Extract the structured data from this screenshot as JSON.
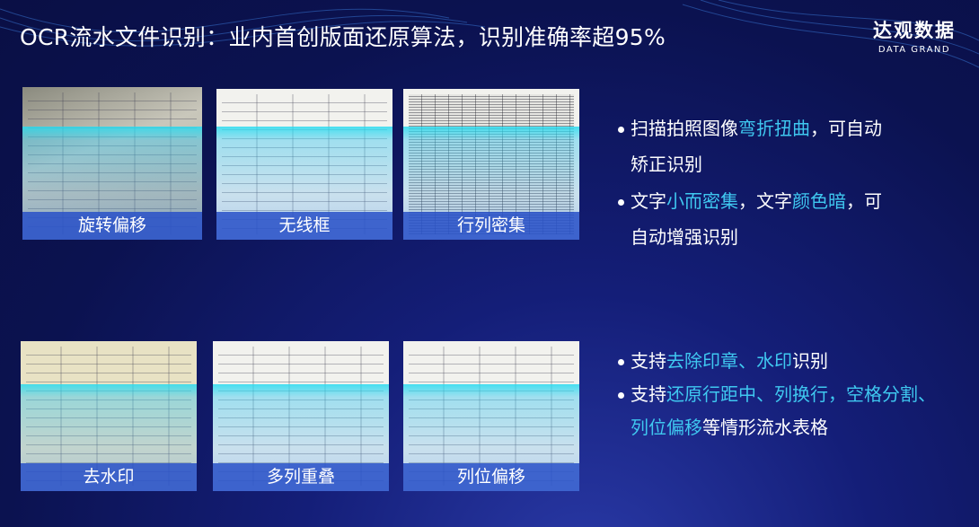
{
  "title": "OCR流水文件识别：业内首创版面还原算法，识别准确率超95%",
  "logo": {
    "cn": "达观数据",
    "en": "DATA GRAND"
  },
  "colors": {
    "background": "#0b1250",
    "highlight": "#3fc8f0",
    "label_bar": "#2850c8",
    "scan_overlay": "#28dcf0"
  },
  "cards": [
    {
      "label": "旋转偏移"
    },
    {
      "label": "无线框"
    },
    {
      "label": "行列密集"
    },
    {
      "label": "去水印"
    },
    {
      "label": "多列重叠"
    },
    {
      "label": "列位偏移"
    }
  ],
  "bullets_top": [
    {
      "lines": [
        [
          {
            "t": "扫描拍照图像",
            "h": false
          },
          {
            "t": "弯折扭曲",
            "h": true
          },
          {
            "t": "，可自动",
            "h": false
          }
        ],
        [
          {
            "t": "矫正识别",
            "h": false
          }
        ]
      ]
    },
    {
      "lines": [
        [
          {
            "t": "文字",
            "h": false
          },
          {
            "t": "小而密集",
            "h": true
          },
          {
            "t": "，文字",
            "h": false
          },
          {
            "t": "颜色暗",
            "h": true
          },
          {
            "t": "，可",
            "h": false
          }
        ],
        [
          {
            "t": "自动增强识别",
            "h": false
          }
        ]
      ]
    }
  ],
  "bullets_bottom": [
    {
      "lines": [
        [
          {
            "t": "支持",
            "h": false
          },
          {
            "t": "去除印章、水印",
            "h": true
          },
          {
            "t": "识别",
            "h": false
          }
        ]
      ]
    },
    {
      "lines": [
        [
          {
            "t": "支持",
            "h": false
          },
          {
            "t": "还原行距中、列换行，空格分割、",
            "h": true
          }
        ],
        [
          {
            "t": "列位偏移",
            "h": true
          },
          {
            "t": "等情形流水表格",
            "h": false
          }
        ]
      ]
    }
  ]
}
